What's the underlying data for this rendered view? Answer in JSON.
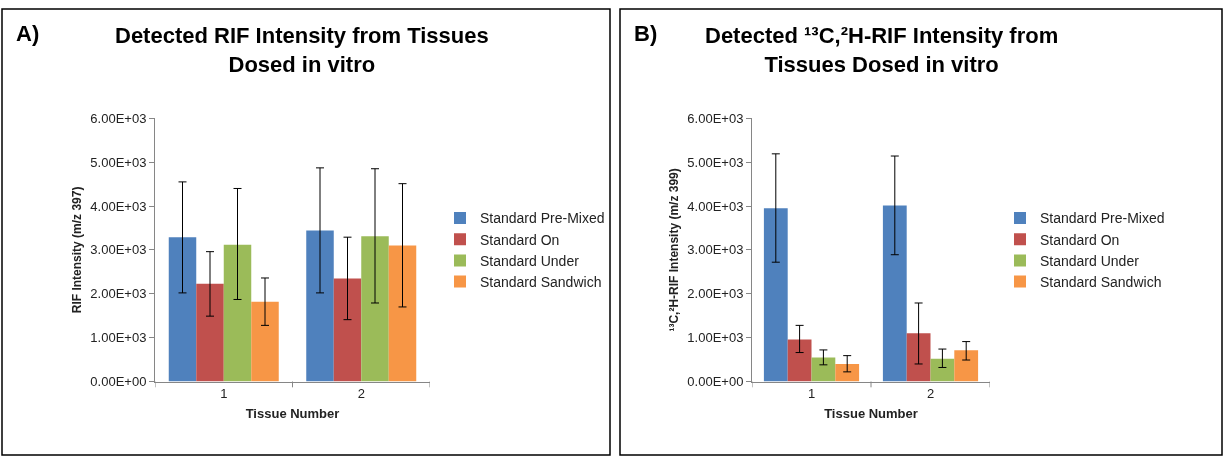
{
  "chart_data": [
    {
      "type": "bar",
      "title": "Detected RIF Intensity from Tissues\nDosed in vitro",
      "xlabel": "Tissue Number",
      "ylabel": "RIF Intensity (m/z 397)",
      "annotations": [
        "A)"
      ],
      "categories": [
        "1",
        "2"
      ],
      "series": [
        {
          "name": "Standard Pre-Mixed",
          "color": "#4f81bd",
          "values": [
            3290,
            3440
          ],
          "errors": [
            [
              2020,
              4550
            ],
            [
              2020,
              4870
            ]
          ]
        },
        {
          "name": "Standard On",
          "color": "#c0504d",
          "values": [
            2230,
            2350
          ],
          "errors": [
            [
              1490,
              2960
            ],
            [
              1410,
              3290
            ]
          ]
        },
        {
          "name": "Standard Under",
          "color": "#9bbb59",
          "values": [
            3120,
            3310
          ],
          "errors": [
            [
              1870,
              4400
            ],
            [
              1790,
              4850
            ]
          ]
        },
        {
          "name": "Standard Sandwich",
          "color": "#f79646",
          "values": [
            1820,
            3100
          ],
          "errors": [
            [
              1280,
              2360
            ],
            [
              1700,
              4510
            ]
          ]
        }
      ],
      "ylim": [
        0,
        6000
      ],
      "yticks": [
        {
          "value": 0,
          "label": "0.00E+00"
        },
        {
          "value": 1000,
          "label": "1.00E+03"
        },
        {
          "value": 2000,
          "label": "2.00E+03"
        },
        {
          "value": 3000,
          "label": "3.00E+03"
        },
        {
          "value": 4000,
          "label": "4.00E+03"
        },
        {
          "value": 5000,
          "label": "5.00E+03"
        },
        {
          "value": 6000,
          "label": "6.00E+03"
        }
      ],
      "legend": "right"
    },
    {
      "type": "bar",
      "title": "Detected ¹³C,²H-RIF Intensity from\nTissues Dosed in vitro",
      "xlabel": "Tissue Number",
      "ylabel": "¹³C,²H-RIF Intensity (m/z 399)",
      "annotations": [
        "B)"
      ],
      "categories": [
        "1",
        "2"
      ],
      "series": [
        {
          "name": "Standard Pre-Mixed",
          "color": "#4f81bd",
          "values": [
            3950,
            4010
          ],
          "errors": [
            [
              2720,
              5190
            ],
            [
              2890,
              5140
            ]
          ]
        },
        {
          "name": "Standard On",
          "color": "#c0504d",
          "values": [
            960,
            1100
          ],
          "errors": [
            [
              660,
              1280
            ],
            [
              400,
              1790
            ]
          ]
        },
        {
          "name": "Standard Under",
          "color": "#9bbb59",
          "values": [
            550,
            520
          ],
          "errors": [
            [
              380,
              720
            ],
            [
              320,
              740
            ]
          ]
        },
        {
          "name": "Standard Sandwich",
          "color": "#f79646",
          "values": [
            400,
            710
          ],
          "errors": [
            [
              220,
              590
            ],
            [
              490,
              910
            ]
          ]
        }
      ],
      "ylim": [
        0,
        6000
      ],
      "yticks": [
        {
          "value": 0,
          "label": "0.00E+00"
        },
        {
          "value": 1000,
          "label": "1.00E+03"
        },
        {
          "value": 2000,
          "label": "2.00E+03"
        },
        {
          "value": 3000,
          "label": "3.00E+03"
        },
        {
          "value": 4000,
          "label": "4.00E+03"
        },
        {
          "value": 5000,
          "label": "5.00E+03"
        },
        {
          "value": 6000,
          "label": "6.00E+03"
        }
      ],
      "legend": "right"
    }
  ]
}
